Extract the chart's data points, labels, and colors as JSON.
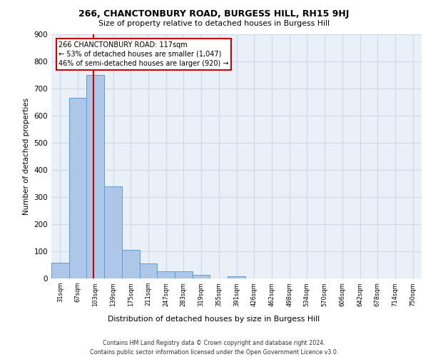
{
  "title_line1": "266, CHANCTONBURY ROAD, BURGESS HILL, RH15 9HJ",
  "title_line2": "Size of property relative to detached houses in Burgess Hill",
  "xlabel": "Distribution of detached houses by size in Burgess Hill",
  "ylabel": "Number of detached properties",
  "footer_line1": "Contains HM Land Registry data © Crown copyright and database right 2024.",
  "footer_line2": "Contains public sector information licensed under the Open Government Licence v3.0.",
  "bin_labels": [
    "31sqm",
    "67sqm",
    "103sqm",
    "139sqm",
    "175sqm",
    "211sqm",
    "247sqm",
    "283sqm",
    "319sqm",
    "355sqm",
    "391sqm",
    "426sqm",
    "462sqm",
    "498sqm",
    "534sqm",
    "570sqm",
    "606sqm",
    "642sqm",
    "678sqm",
    "714sqm",
    "750sqm"
  ],
  "bar_values": [
    57,
    665,
    748,
    338,
    106,
    55,
    27,
    26,
    12,
    0,
    8,
    0,
    0,
    0,
    0,
    0,
    0,
    0,
    0,
    0,
    0
  ],
  "bar_color": "#aec6e8",
  "bar_edge_color": "#5b9bd5",
  "subject_line_color": "#cc0000",
  "annotation_text": "266 CHANCTONBURY ROAD: 117sqm\n← 53% of detached houses are smaller (1,047)\n46% of semi-detached houses are larger (920) →",
  "annotation_box_color": "#cc0000",
  "ylim": [
    0,
    900
  ],
  "yticks": [
    0,
    100,
    200,
    300,
    400,
    500,
    600,
    700,
    800,
    900
  ],
  "grid_color": "#d0d8e8",
  "plot_bg_color": "#eaf0f8"
}
